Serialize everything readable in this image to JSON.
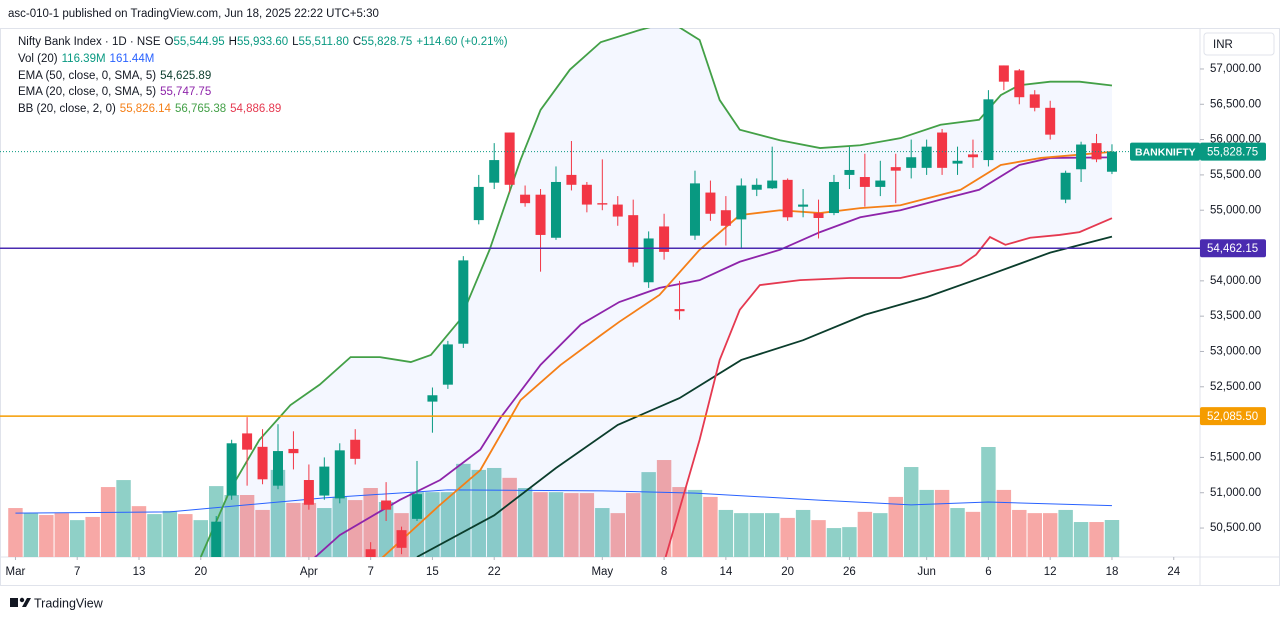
{
  "header": "asc-010-1 published on TradingView.com, Jun 18, 2025 22:22 UTC+5:30",
  "footer": "TradingView",
  "chart_data": {
    "type": "candlestick",
    "currency": "INR",
    "legend": {
      "symbol": "Nifty Bank Index · 1D · NSE",
      "ohlc": [
        {
          "key": "O",
          "value": "55,544.95"
        },
        {
          "key": "H",
          "value": "55,933.60"
        },
        {
          "key": "L",
          "value": "55,511.80"
        },
        {
          "key": "C",
          "value": "55,828.75"
        }
      ],
      "change": "+114.60 (+0.21%)",
      "color": "#089981",
      "indicators": [
        {
          "name": "Vol (20)",
          "values": [
            "116.39M",
            "161.44M"
          ],
          "colors": [
            "#089981",
            "#2962ff"
          ]
        },
        {
          "name": "EMA (50, close, 0, SMA, 5)",
          "values": [
            "54,625.89"
          ],
          "colors": [
            "#0b3d2c"
          ]
        },
        {
          "name": "EMA (20, close, 0, SMA, 5)",
          "values": [
            "55,747.75"
          ],
          "colors": [
            "#8e24aa"
          ]
        },
        {
          "name": "BB (20, close, 2, 0)",
          "values": [
            "55,826.14",
            "56,765.38",
            "54,886.89"
          ],
          "colors": [
            "#f57f17",
            "#43a047",
            "#e53950"
          ]
        }
      ]
    },
    "up_color": "#089981",
    "down_color": "#f23645",
    "xlim": [
      -1,
      76.7
    ],
    "xticks": [
      {
        "value": 0,
        "label": "Mar"
      },
      {
        "value": 4,
        "label": "7"
      },
      {
        "value": 8,
        "label": "13"
      },
      {
        "value": 12,
        "label": "20"
      },
      {
        "value": 19,
        "label": "Apr"
      },
      {
        "value": 23,
        "label": "7"
      },
      {
        "value": 27,
        "label": "15"
      },
      {
        "value": 31,
        "label": "22"
      },
      {
        "value": 38,
        "label": "May"
      },
      {
        "value": 42,
        "label": "8"
      },
      {
        "value": 46,
        "label": "14"
      },
      {
        "value": 50,
        "label": "20"
      },
      {
        "value": 54,
        "label": "26"
      },
      {
        "value": 59,
        "label": "Jun"
      },
      {
        "value": 63,
        "label": "6"
      },
      {
        "value": 67,
        "label": "12"
      },
      {
        "value": 71,
        "label": "18"
      },
      {
        "value": 75,
        "label": "24"
      }
    ],
    "ylim": [
      50090,
      57580
    ],
    "yticks": [
      {
        "value": 57000,
        "label": "57,000.00"
      },
      {
        "value": 56500,
        "label": "56,500.00"
      },
      {
        "value": 56000,
        "label": "56,000.00"
      },
      {
        "value": 55500,
        "label": "55,500.00"
      },
      {
        "value": 55000,
        "label": "55,000.00"
      },
      {
        "value": 54000,
        "label": "54,000.00"
      },
      {
        "value": 53500,
        "label": "53,500.00"
      },
      {
        "value": 53000,
        "label": "53,000.00"
      },
      {
        "value": 52500,
        "label": "52,500.00"
      },
      {
        "value": 51500,
        "label": "51,500.00"
      },
      {
        "value": 51000,
        "label": "51,000.00"
      },
      {
        "value": 50500,
        "label": "50,500.00"
      }
    ],
    "x": [
      13,
      14,
      15,
      16,
      17,
      18,
      19,
      20,
      21,
      22,
      23,
      24,
      25,
      26,
      27,
      28,
      29,
      30,
      31,
      32,
      33,
      34,
      35,
      36,
      37,
      38,
      39,
      40,
      41,
      42,
      43,
      44,
      45,
      46,
      47,
      48,
      49,
      50,
      51,
      52,
      53,
      54,
      55,
      56,
      57,
      58,
      59,
      60,
      61,
      62,
      63,
      64,
      65,
      66,
      67,
      68,
      69,
      70,
      71
    ],
    "open": [
      49900,
      50960,
      51840,
      51650,
      51100,
      51620,
      51180,
      50960,
      50920,
      51750,
      50200,
      50890,
      50470,
      50630,
      52290,
      52530,
      53110,
      54860,
      55390,
      56100,
      55220,
      55220,
      54610,
      55500,
      55360,
      55100,
      55080,
      54930,
      53980,
      54770,
      53600,
      54640,
      55250,
      55000,
      54870,
      55290,
      55310,
      55430,
      55050,
      54960,
      54960,
      55500,
      55470,
      55330,
      55610,
      55600,
      55600,
      56100,
      55660,
      55790,
      55710,
      57050,
      56980,
      56640,
      56450,
      55150,
      55580,
      55950,
      55544.95
    ],
    "high": [
      50670,
      51750,
      52070,
      51900,
      51970,
      51870,
      51400,
      51500,
      51700,
      51900,
      50300,
      51150,
      50520,
      51450,
      52490,
      53150,
      54350,
      55500,
      55950,
      56100,
      55350,
      55300,
      55620,
      55980,
      55400,
      55720,
      55200,
      55150,
      54700,
      54950,
      54000,
      55560,
      55420,
      55200,
      55450,
      55450,
      55900,
      55450,
      55300,
      55150,
      55500,
      55900,
      55800,
      55700,
      55800,
      56000,
      56000,
      56150,
      55900,
      56000,
      56700,
      57050,
      57000,
      56700,
      56550,
      55560,
      55970,
      56080,
      55933.6
    ],
    "low": [
      49850,
      50900,
      51100,
      51120,
      51050,
      51330,
      50760,
      50900,
      50850,
      51400,
      49000,
      50600,
      50130,
      50600,
      51850,
      52470,
      53050,
      54800,
      55300,
      55250,
      55050,
      54130,
      54580,
      55280,
      54970,
      55000,
      54780,
      54200,
      53900,
      54300,
      53450,
      54580,
      54850,
      54500,
      54450,
      55200,
      55300,
      54850,
      54900,
      54600,
      54930,
      55300,
      55050,
      55200,
      55100,
      55450,
      55500,
      55500,
      55500,
      55600,
      55620,
      56700,
      56500,
      56400,
      56000,
      55100,
      55400,
      55680,
      55511.8
    ],
    "close": [
      50590,
      51700,
      51610,
      51190,
      51590,
      51560,
      50830,
      51370,
      51600,
      51480,
      49900,
      50760,
      50220,
      50980,
      52380,
      53100,
      54290,
      55330,
      55710,
      55360,
      55100,
      54650,
      55400,
      55360,
      55080,
      55080,
      54910,
      54260,
      54600,
      54410,
      53570,
      55380,
      54950,
      54780,
      55350,
      55360,
      55420,
      54900,
      55080,
      54890,
      55400,
      55570,
      55330,
      55420,
      55560,
      55750,
      55900,
      55600,
      55700,
      55750,
      56570,
      56820,
      56600,
      56450,
      56070,
      55530,
      55930,
      55720,
      55828.75
    ],
    "volume": {
      "values": [
        154,
        138,
        132,
        138,
        116,
        126,
        220,
        242,
        160,
        135,
        145,
        135,
        116,
        223,
        195,
        195,
        148,
        274,
        170,
        170,
        154,
        189,
        179,
        217,
        173,
        138,
        204,
        204,
        204,
        293,
        274,
        280,
        249,
        217,
        204,
        204,
        201,
        201,
        154,
        138,
        201,
        267,
        305,
        220,
        211,
        189,
        148,
        138,
        138,
        138,
        123,
        148,
        116,
        91,
        94,
        142,
        138,
        189,
        283,
        211,
        211,
        154,
        142,
        346,
        211,
        148,
        138,
        138,
        148,
        110,
        110,
        116.39
      ],
      "colors": [
        "#f7a8a6",
        "#8fd0c7",
        "#f7a8a6",
        "#f7a8a6",
        "#8fd0c7",
        "#f7a8a6",
        "#f7a8a6",
        "#8fd0c7",
        "#f7a8a6",
        "#8fd0c7",
        "#8fd0c7",
        "#f7a8a6",
        "#8fd0c7",
        "#8fd0c7",
        "#8fd0c7",
        "#f7a8a6",
        "#f7a8a6",
        "#8fd0c7",
        "#f7a8a6",
        "#f7a8a6",
        "#8fd0c7",
        "#8fd0c7",
        "#f7a8a6",
        "#f7a8a6",
        "#8fd0c7",
        "#f7a8a6",
        "#8fd0c7",
        "#8fd0c7",
        "#8fd0c7",
        "#8fd0c7",
        "#8fd0c7",
        "#8fd0c7",
        "#f7a8a6",
        "#8fd0c7",
        "#f7a8a6",
        "#8fd0c7",
        "#f7a8a6",
        "#f7a8a6",
        "#8fd0c7",
        "#f7a8a6",
        "#f7a8a6",
        "#8fd0c7",
        "#f7a8a6",
        "#f7a8a6",
        "#8fd0c7",
        "#f7a8a6",
        "#8fd0c7",
        "#8fd0c7",
        "#8fd0c7",
        "#8fd0c7",
        "#f7a8a6",
        "#8fd0c7",
        "#f7a8a6",
        "#8fd0c7",
        "#8fd0c7",
        "#f7a8a6",
        "#8fd0c7",
        "#f7a8a6",
        "#8fd0c7",
        "#8fd0c7",
        "#f7a8a6",
        "#8fd0c7",
        "#f7a8a6",
        "#8fd0c7",
        "#f7a8a6",
        "#f7a8a6",
        "#f7a8a6",
        "#f7a8a6",
        "#8fd0c7",
        "#8fd0c7",
        "#f7a8a6",
        "#8fd0c7"
      ],
      "ma": {
        "color": "#2962ff",
        "x": [
          0,
          10,
          20,
          28,
          38,
          44,
          52,
          58,
          63,
          71
        ],
        "values": [
          138,
          142,
          186,
          211,
          208,
          201,
          179,
          164,
          173,
          161.44
        ]
      }
    },
    "series": [
      {
        "name": "EMA (50, close, 0, SMA, 5)",
        "color": "#0b3d2c",
        "x": [
          26,
          31,
          35,
          39,
          43,
          47,
          51,
          55,
          59,
          63,
          67,
          71
        ],
        "values": [
          50090,
          50680,
          51350,
          51960,
          52340,
          52880,
          53160,
          53520,
          53770,
          54080,
          54400,
          54625.89
        ]
      },
      {
        "name": "EMA (20, close, 0, SMA, 5)",
        "color": "#8e24aa",
        "x": [
          18.5,
          21.0,
          24.9,
          27.5,
          30.1,
          31.4,
          34.0,
          36.6,
          39.1,
          41.7,
          44.3,
          46.9,
          49.5,
          52.1,
          54.7,
          57.3,
          59.9,
          62.4,
          65.0,
          67.0,
          71
        ],
        "values": [
          49910,
          50400,
          50900,
          51180,
          51610,
          52060,
          52810,
          53380,
          53700,
          53900,
          54010,
          54270,
          54440,
          54690,
          54900,
          55000,
          55150,
          55290,
          55640,
          55740,
          55747.75
        ]
      },
      {
        "name": "BB basis",
        "color": "#f57f17",
        "x": [
          23.6,
          27.5,
          30.1,
          32.7,
          35.3,
          37.9,
          39.1,
          41.7,
          44.3,
          46.9,
          49.5,
          52.1,
          54.7,
          57.3,
          61.2,
          63.8,
          66.4,
          71
        ],
        "values": [
          50050,
          50830,
          51320,
          52310,
          52810,
          53230,
          53420,
          53800,
          54440,
          54930,
          55000,
          54960,
          55030,
          55070,
          55290,
          55640,
          55740,
          55826.14
        ]
      },
      {
        "name": "BB upper",
        "color": "#43a047",
        "x": [
          12.0,
          13.9,
          15.8,
          17.8,
          19.7,
          21.7,
          23.6,
          25.6,
          26.9,
          28.8,
          30.7,
          32.7,
          34.0,
          35.9,
          37.9,
          40.4,
          42.4,
          44.3,
          45.6,
          46.9,
          49.5,
          52.1,
          54.7,
          57.3,
          59.9,
          62.4,
          63.8,
          65.0,
          67.0,
          68.9,
          71
        ],
        "values": [
          50090,
          51040,
          51750,
          52240,
          52530,
          52920,
          52920,
          52850,
          52950,
          53450,
          54440,
          55710,
          56420,
          56990,
          57380,
          57550,
          57670,
          57410,
          56560,
          56140,
          55990,
          55880,
          55920,
          56020,
          56210,
          56280,
          56630,
          56770,
          56820,
          56820,
          56765.38
        ]
      },
      {
        "name": "BB lower",
        "color": "#e53950",
        "x": [
          42.1,
          44.3,
          45.6,
          46.9,
          48.2,
          50.8,
          54.0,
          57.3,
          59.2,
          61.2,
          62.2,
          63.1,
          64.1,
          65.7,
          67.6,
          68.9,
          71
        ],
        "values": [
          50090,
          51750,
          52880,
          53590,
          53940,
          54010,
          54040,
          54040,
          54130,
          54220,
          54370,
          54620,
          54510,
          54610,
          54650,
          54690,
          54886.89
        ]
      }
    ],
    "band_fill": "#2962ff",
    "last_price": {
      "name": "BANKNIFTY",
      "value": 55828.75,
      "label": "55,828.75",
      "color": "#089981"
    },
    "levels": [
      {
        "value": 54462.15,
        "label": "54,462.15",
        "color": "#4a2bb0"
      },
      {
        "value": 52085.5,
        "label": "52,085.50",
        "color": "#f59c00"
      }
    ]
  }
}
